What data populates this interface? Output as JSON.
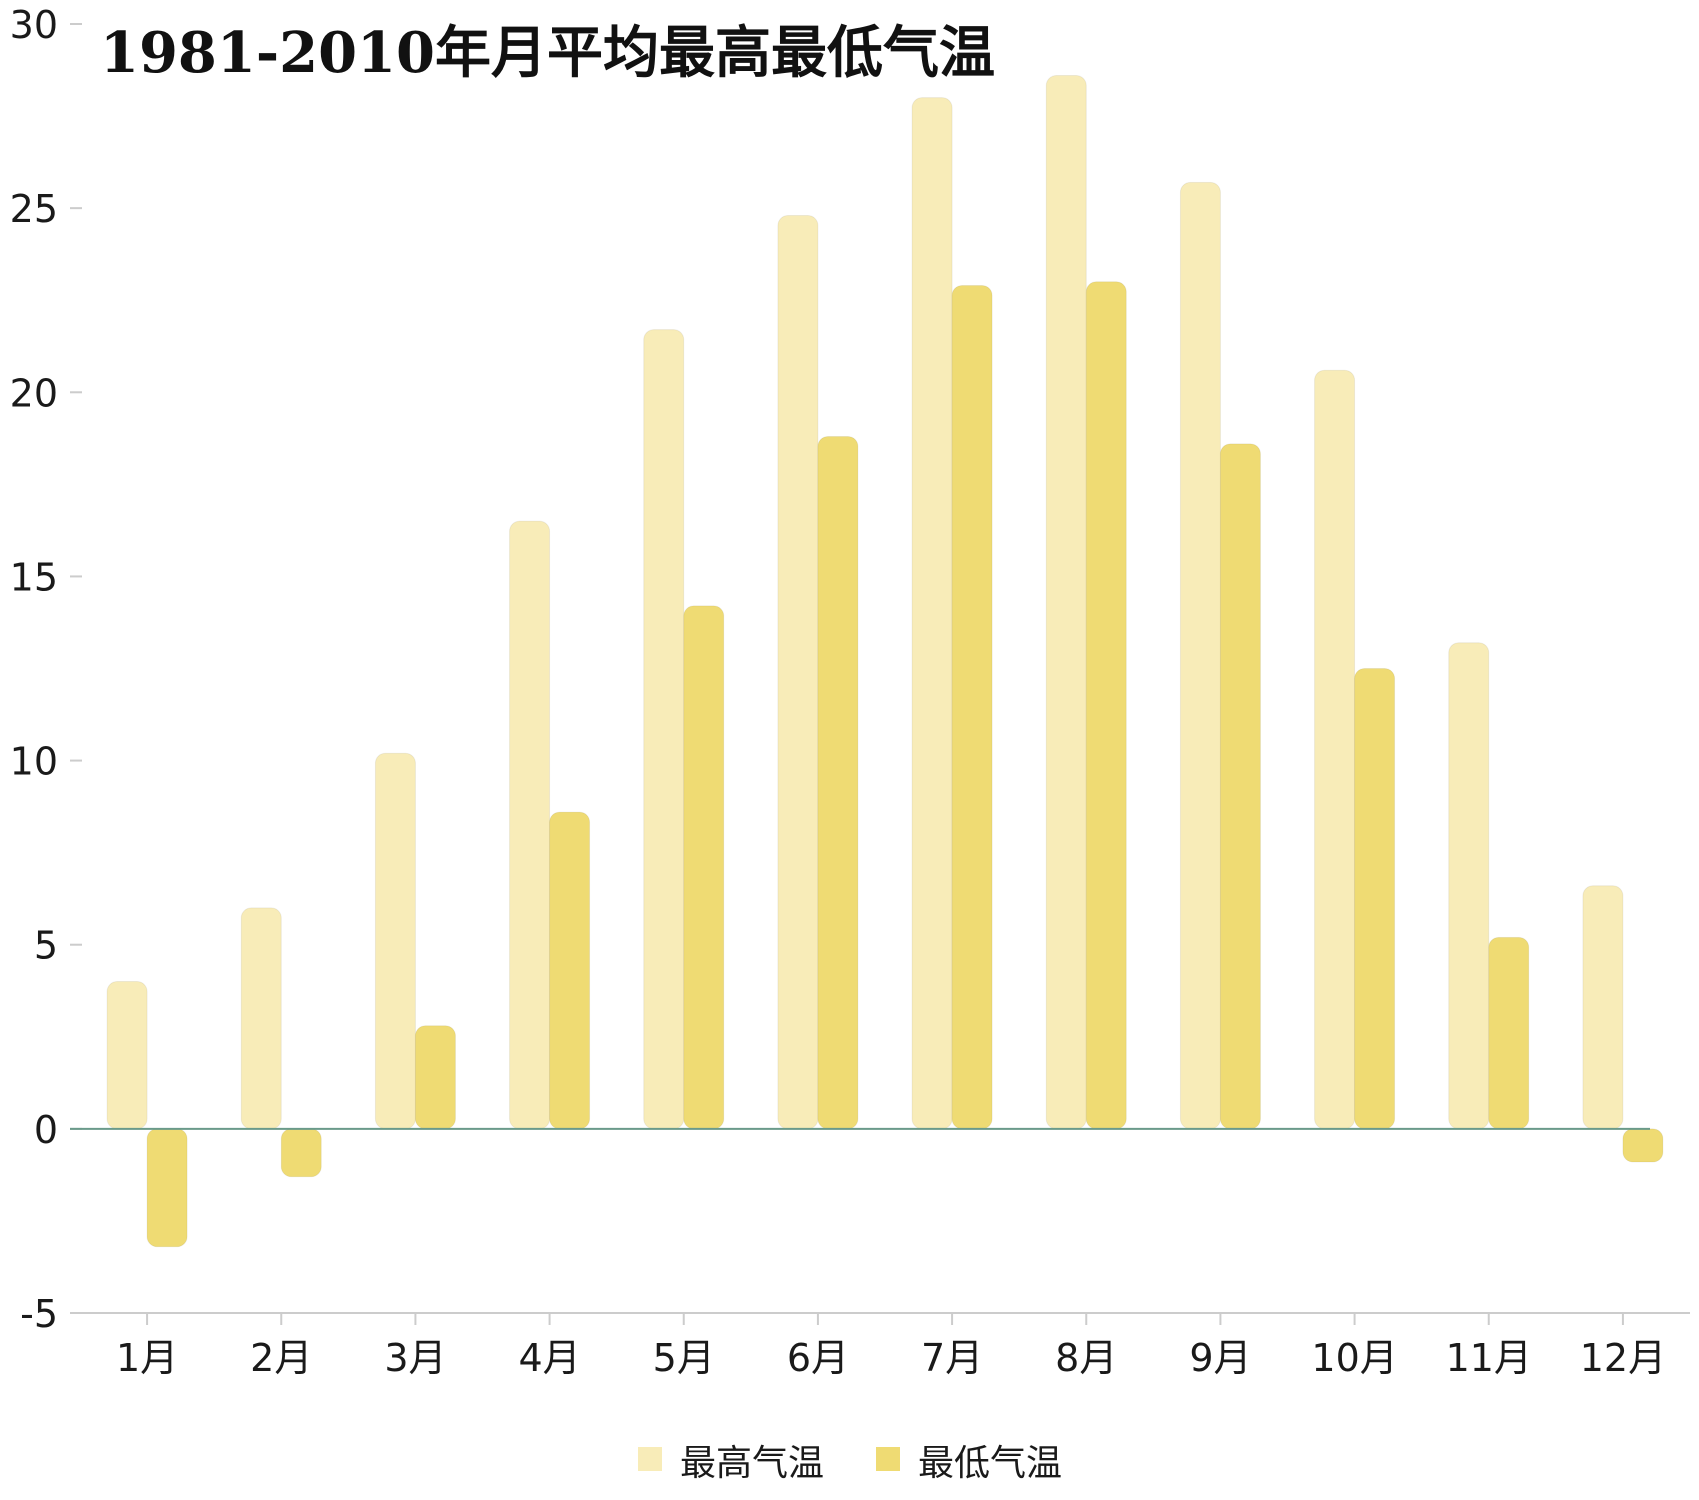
{
  "chart_data": {
    "type": "bar",
    "title": "1981-2010年月平均最高最低气温",
    "categories": [
      "1月",
      "2月",
      "3月",
      "4月",
      "5月",
      "6月",
      "7月",
      "8月",
      "9月",
      "10月",
      "11月",
      "12月"
    ],
    "series": [
      {
        "name": "最高气温",
        "color": "#f8ecb8",
        "values": [
          4.0,
          6.0,
          10.2,
          16.5,
          21.7,
          24.8,
          28.0,
          28.6,
          25.7,
          20.6,
          13.2,
          6.6
        ]
      },
      {
        "name": "最低气温",
        "color": "#efdb73",
        "values": [
          -3.2,
          -1.3,
          2.8,
          8.6,
          14.2,
          18.8,
          22.9,
          23.0,
          18.6,
          12.5,
          5.2,
          -0.9
        ]
      }
    ],
    "yticks": [
      "-5",
      "0",
      "5",
      "10",
      "15",
      "20",
      "25",
      "30"
    ],
    "ylim": [
      -5,
      30
    ],
    "xlabel": "",
    "ylabel": "",
    "legend_position": "bottom-center",
    "grid": false,
    "zero_line_color": "#6a9a8a"
  }
}
